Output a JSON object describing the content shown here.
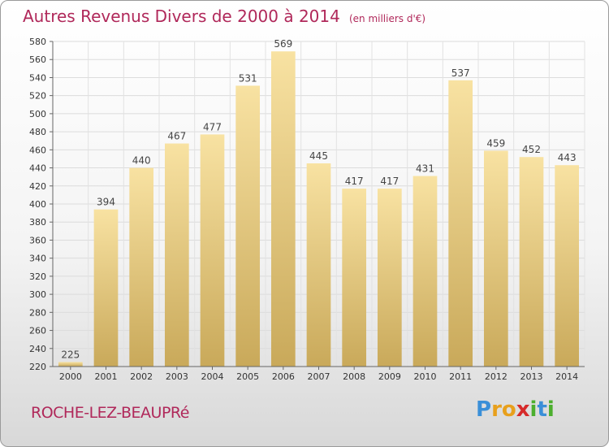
{
  "header": {
    "title": "Autres Revenus Divers de 2000 à 2014",
    "unit": "(en milliers d'€)"
  },
  "footer": {
    "place": "ROCHE-LEZ-BEAUPRé",
    "logo_letters": [
      {
        "char": "P",
        "color": "#3a8fd8"
      },
      {
        "char": "r",
        "color": "#e8a01c"
      },
      {
        "char": "o",
        "color": "#e8a01c"
      },
      {
        "char": "x",
        "color": "#d62a2a"
      },
      {
        "char": "i",
        "color": "#4caf2e"
      },
      {
        "char": "t",
        "color": "#3a8fd8"
      },
      {
        "char": "i",
        "color": "#4caf2e"
      }
    ]
  },
  "colors": {
    "bar_top": "#f8e2a2",
    "bar_bottom": "#c9a95a",
    "accent": "#b0285a"
  },
  "chart_data": {
    "type": "bar",
    "categories": [
      "2000",
      "2001",
      "2002",
      "2003",
      "2004",
      "2005",
      "2006",
      "2007",
      "2008",
      "2009",
      "2010",
      "2011",
      "2012",
      "2013",
      "2014"
    ],
    "values": [
      225,
      394,
      440,
      467,
      477,
      531,
      569,
      445,
      417,
      417,
      431,
      537,
      459,
      452,
      443
    ],
    "ylim": [
      220,
      580
    ],
    "yticks": [
      220,
      240,
      260,
      280,
      300,
      320,
      340,
      360,
      380,
      400,
      420,
      440,
      460,
      480,
      500,
      520,
      540,
      560,
      580
    ],
    "grid": true,
    "legend": "none"
  }
}
